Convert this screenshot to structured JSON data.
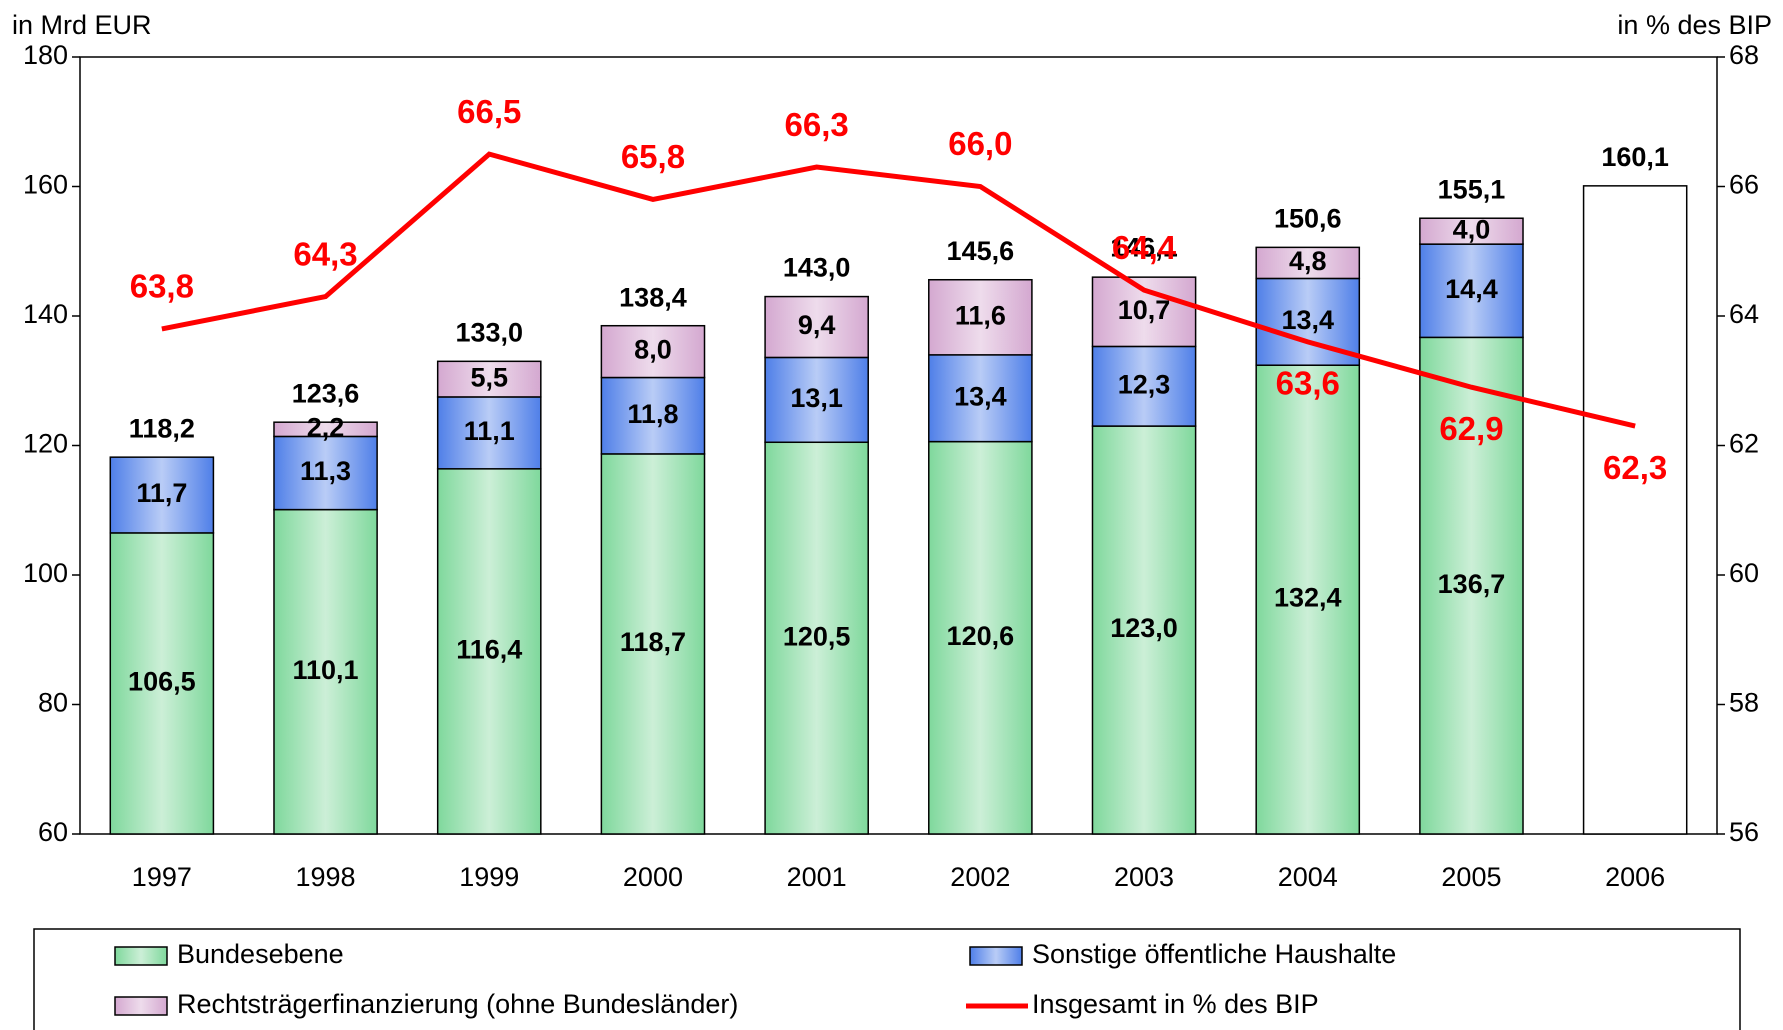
{
  "chart_data": {
    "type": "stacked_bar_line",
    "y_axis_label": "in Mrd EUR",
    "y2_axis_label": "in % des BIP",
    "categories": [
      "1997",
      "1998",
      "1999",
      "2000",
      "2001",
      "2002",
      "2003",
      "2004",
      "2005",
      "2006"
    ],
    "ylim": [
      60,
      180
    ],
    "yticks": [
      60,
      80,
      100,
      120,
      140,
      160,
      180
    ],
    "y2lim": [
      56,
      68
    ],
    "y2ticks": [
      56,
      58,
      60,
      62,
      64,
      66,
      68
    ],
    "series": [
      {
        "name": "Bundesebene",
        "color": "#7fd89c",
        "values": [
          106.5,
          110.1,
          116.4,
          118.7,
          120.5,
          120.6,
          123.0,
          132.4,
          136.7,
          null
        ],
        "value_labels": [
          "106,5",
          "110,1",
          "116,4",
          "118,7",
          "120,5",
          "120,6",
          "123,0",
          "132,4",
          "136,7",
          null
        ]
      },
      {
        "name": "Sonstige öffentliche Haushalte",
        "color": "#4f7fe8",
        "values": [
          11.7,
          11.3,
          11.1,
          11.8,
          13.1,
          13.4,
          12.3,
          13.4,
          14.4,
          null
        ],
        "value_labels": [
          "11,7",
          "11,3",
          "11,1",
          "11,8",
          "13,1",
          "13,4",
          "12,3",
          "13,4",
          "14,4",
          null
        ]
      },
      {
        "name": "Rechtsträgerfinanzierung (ohne Bundesländer)",
        "color": "#d4a8d0",
        "values": [
          null,
          2.2,
          5.5,
          8.0,
          9.4,
          11.6,
          10.7,
          4.8,
          4.0,
          null
        ],
        "value_labels": [
          null,
          "2,2",
          "5,5",
          "8,0",
          "9,4",
          "11,6",
          "10,7",
          "4,8",
          "4,0",
          null
        ]
      },
      {
        "name": "Insgesamt in % des BIP",
        "color": "#ff0000",
        "axis": "y2",
        "type": "line",
        "values": [
          63.8,
          64.3,
          66.5,
          65.8,
          66.3,
          66.0,
          64.4,
          63.6,
          62.9,
          62.3
        ],
        "value_labels": [
          "63,8",
          "64,3",
          "66,5",
          "65,8",
          "66,3",
          "66,0",
          "64,4",
          "63,6",
          "62,9",
          "62,3"
        ]
      }
    ],
    "totals": {
      "values": [
        118.2,
        123.6,
        133.0,
        138.4,
        143.0,
        145.6,
        146.1,
        150.6,
        155.1,
        160.1
      ],
      "value_labels": [
        "118,2",
        "123,6",
        "133,0",
        "138,4",
        "143,0",
        "145,6",
        "146,1",
        "150,6",
        "155,1",
        "160,1"
      ]
    }
  }
}
